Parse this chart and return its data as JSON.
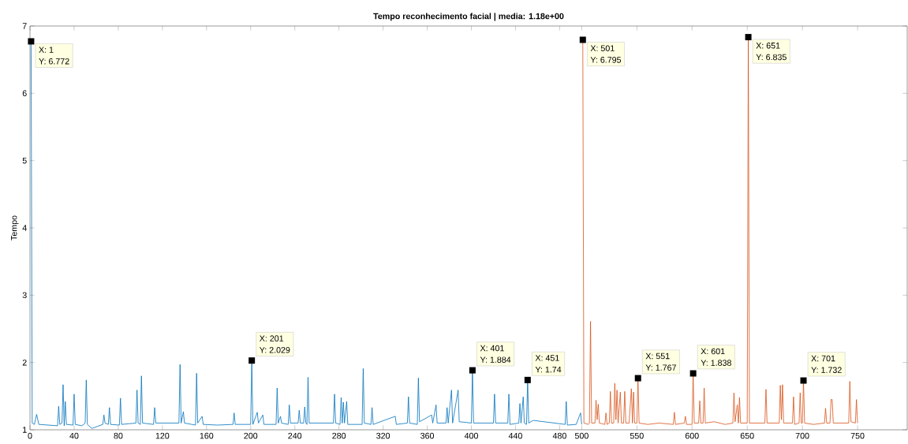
{
  "chart_data": {
    "type": "line",
    "title": "Tempo reconhecimento facial | media: 1.18e+00",
    "ylabel": "Tempo",
    "xlim": [
      0,
      795
    ],
    "ylim": [
      1,
      7
    ],
    "xticks": [
      0,
      40,
      80,
      120,
      160,
      200,
      240,
      280,
      320,
      360,
      400,
      440,
      480,
      500,
      550,
      600,
      650,
      700,
      750
    ],
    "yticks": [
      1,
      2,
      3,
      4,
      5,
      6,
      7
    ],
    "series": [
      {
        "color": "#0072bd",
        "x": [
          1,
          2,
          4,
          6,
          8,
          25,
          26,
          27,
          29,
          30,
          31,
          32,
          33,
          39,
          40,
          41,
          47,
          50,
          51,
          52,
          56,
          66,
          67,
          68,
          71,
          72,
          73,
          81,
          82,
          83,
          96,
          97,
          98,
          100,
          101,
          102,
          112,
          113,
          114,
          135,
          136,
          137,
          139,
          140,
          150,
          151,
          152,
          156,
          157,
          170,
          184,
          185,
          186,
          200,
          201,
          202,
          206,
          207,
          211,
          212,
          223,
          224,
          225,
          227,
          228,
          234,
          235,
          236,
          243,
          244,
          245,
          248,
          249,
          250,
          251,
          252,
          253,
          275,
          276,
          277,
          281,
          282,
          283,
          284,
          285,
          287,
          288,
          301,
          302,
          303,
          309,
          310,
          311,
          331,
          332,
          342,
          343,
          344,
          351,
          352,
          353,
          364,
          365,
          368,
          369,
          377,
          378,
          379,
          382,
          383,
          388,
          389,
          400,
          401,
          402,
          420,
          421,
          422,
          433,
          434,
          435,
          443,
          444,
          445,
          447,
          448,
          450,
          451,
          452,
          456,
          485,
          486,
          487,
          495,
          499,
          500
        ],
        "values": [
          6.772,
          1.1,
          1.08,
          1.23,
          1.08,
          1.06,
          1.35,
          1.08,
          1.1,
          1.67,
          1.06,
          1.42,
          1.08,
          1.07,
          1.53,
          1.08,
          1.06,
          1.1,
          1.74,
          1.08,
          1.02,
          1.08,
          1.22,
          1.1,
          1.08,
          1.33,
          1.08,
          1.07,
          1.47,
          1.08,
          1.1,
          1.59,
          1.1,
          1.08,
          1.8,
          1.1,
          1.08,
          1.33,
          1.1,
          1.1,
          1.97,
          1.1,
          1.27,
          1.1,
          1.07,
          1.84,
          1.1,
          1.2,
          1.08,
          1.07,
          1.08,
          1.25,
          1.08,
          1.08,
          2.029,
          1.08,
          1.26,
          1.1,
          1.22,
          1.08,
          1.08,
          1.62,
          1.1,
          1.2,
          1.1,
          1.08,
          1.37,
          1.1,
          1.1,
          1.29,
          1.1,
          1.1,
          1.34,
          1.1,
          1.08,
          1.78,
          1.1,
          1.1,
          1.53,
          1.1,
          1.08,
          1.48,
          1.1,
          1.41,
          1.1,
          1.42,
          1.08,
          1.08,
          1.91,
          1.1,
          1.08,
          1.33,
          1.08,
          1.2,
          1.08,
          1.1,
          1.49,
          1.1,
          1.08,
          1.77,
          1.12,
          1.22,
          1.1,
          1.37,
          1.1,
          1.1,
          1.33,
          1.1,
          1.59,
          1.1,
          1.59,
          1.12,
          1.1,
          1.884,
          1.1,
          1.1,
          1.53,
          1.1,
          1.1,
          1.53,
          1.08,
          1.1,
          1.39,
          1.1,
          1.49,
          1.1,
          1.08,
          1.74,
          1.1,
          1.14,
          1.08,
          1.42,
          1.07,
          1.08,
          1.25,
          1.08
        ]
      },
      {
        "color": "#d95319",
        "x": [
          501,
          502,
          506,
          507,
          508,
          509,
          512,
          513,
          514,
          515,
          516,
          521,
          522,
          523,
          525,
          526,
          527,
          529,
          530,
          531,
          532,
          533,
          535,
          536,
          538,
          539,
          540,
          543,
          544,
          545,
          546,
          547,
          548,
          550,
          551,
          552,
          560,
          570,
          583,
          584,
          585,
          593,
          594,
          595,
          600,
          601,
          602,
          606,
          607,
          608,
          610,
          611,
          612,
          620,
          630,
          637,
          638,
          639,
          641,
          642,
          643,
          644,
          650,
          651,
          652,
          660,
          666,
          667,
          668,
          679,
          680,
          681,
          682,
          683,
          691,
          692,
          693,
          697,
          698,
          699,
          700,
          701,
          702,
          710,
          720,
          721,
          722,
          725,
          726,
          727,
          728,
          735,
          742,
          743,
          744,
          748,
          749,
          750
        ],
        "values": [
          6.795,
          1.1,
          1.08,
          1.1,
          2.61,
          1.1,
          1.1,
          1.44,
          1.15,
          1.38,
          1.1,
          1.08,
          1.25,
          1.08,
          1.1,
          1.57,
          1.1,
          1.1,
          1.69,
          1.15,
          1.59,
          1.1,
          1.56,
          1.1,
          1.1,
          1.57,
          1.1,
          1.1,
          1.37,
          1.61,
          1.1,
          1.56,
          1.1,
          1.1,
          1.767,
          1.1,
          1.08,
          1.1,
          1.08,
          1.26,
          1.08,
          1.1,
          1.2,
          1.08,
          1.08,
          1.838,
          1.1,
          1.1,
          1.43,
          1.1,
          1.1,
          1.62,
          1.1,
          1.12,
          1.08,
          1.1,
          1.55,
          1.12,
          1.37,
          1.1,
          1.48,
          1.1,
          1.1,
          6.835,
          1.1,
          1.1,
          1.1,
          1.6,
          1.1,
          1.1,
          1.66,
          1.15,
          1.67,
          1.1,
          1.1,
          1.49,
          1.08,
          1.1,
          1.55,
          1.1,
          1.1,
          1.732,
          1.1,
          1.08,
          1.1,
          1.32,
          1.1,
          1.1,
          1.45,
          1.45,
          1.1,
          1.1,
          1.1,
          1.72,
          1.12,
          1.1,
          1.45,
          1.1
        ]
      }
    ],
    "annotations": [
      {
        "text": "X: 1",
        "x": 1,
        "y": 6.772
      },
      {
        "text": "Y: 6.772",
        "x": 1,
        "y": 6.772
      },
      {
        "text": "X: 201",
        "x": 201,
        "y": 2.029
      },
      {
        "text": "Y: 2.029",
        "x": 201,
        "y": 2.029
      },
      {
        "text": "X: 401",
        "x": 401,
        "y": 1.884
      },
      {
        "text": "Y: 1.884",
        "x": 401,
        "y": 1.884
      },
      {
        "text": "X: 451",
        "x": 451,
        "y": 1.74
      },
      {
        "text": "Y: 1.74",
        "x": 451,
        "y": 1.74
      },
      {
        "text": "X: 501",
        "x": 501,
        "y": 6.795
      },
      {
        "text": "Y: 6.795",
        "x": 501,
        "y": 6.795
      },
      {
        "text": "X: 551",
        "x": 551,
        "y": 1.767
      },
      {
        "text": "Y: 1.767",
        "x": 551,
        "y": 1.767
      },
      {
        "text": "X: 601",
        "x": 601,
        "y": 1.838
      },
      {
        "text": "Y: 1.838",
        "x": 601,
        "y": 1.838
      },
      {
        "text": "X: 651",
        "x": 651,
        "y": 6.835
      },
      {
        "text": "Y: 6.835",
        "x": 651,
        "y": 6.835
      },
      {
        "text": "X: 701",
        "x": 701,
        "y": 1.732
      },
      {
        "text": "Y: 1.732",
        "x": 701,
        "y": 1.732
      }
    ]
  }
}
